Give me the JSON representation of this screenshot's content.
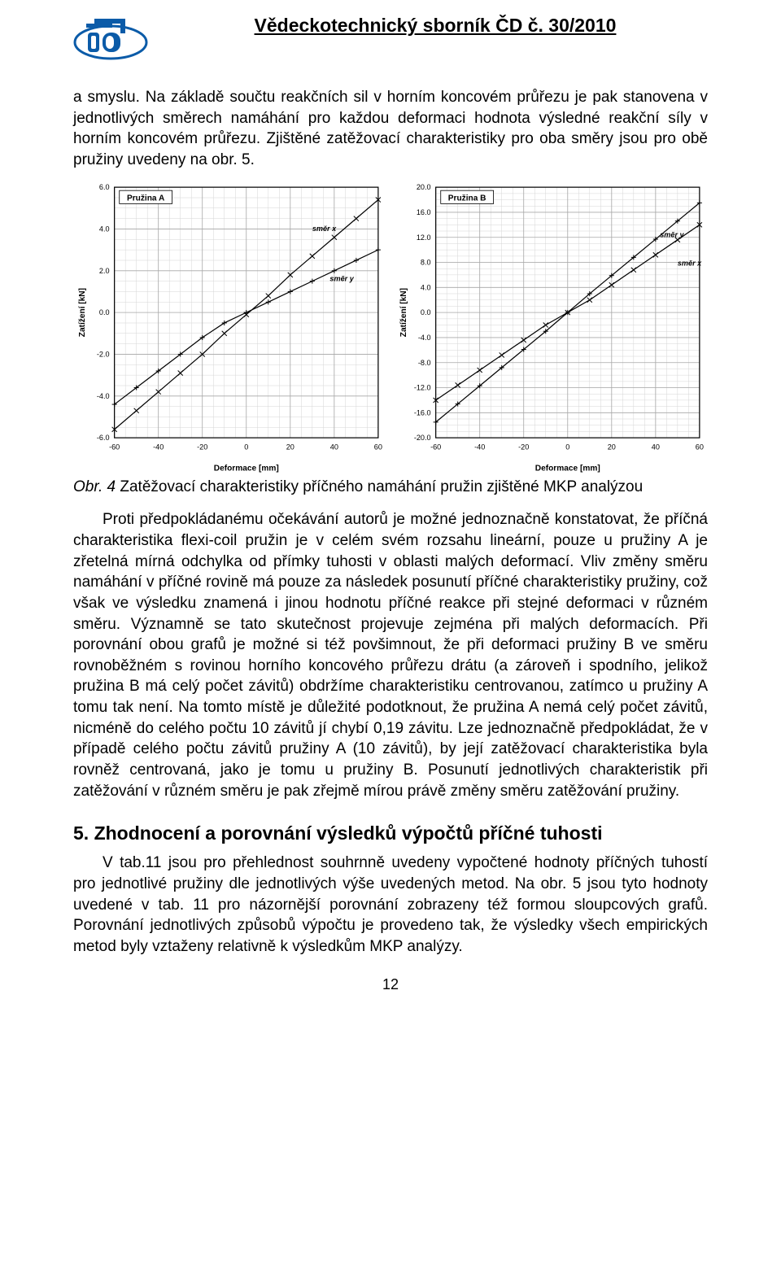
{
  "header": {
    "title": "Vědeckotechnický sborník ČD č. 30/2010",
    "logo_colors": {
      "blue": "#0b5ba8",
      "white": "#ffffff"
    }
  },
  "paragraphs": {
    "p1": "a smyslu. Na základě součtu reakčních sil v horním koncovém průřezu je pak stanovena v jednotlivých směrech namáhání pro každou deformaci hodnota výsledné reakční síly v horním koncovém průřezu. Zjištěné zatěžovací charakteristiky pro oba směry jsou pro obě pružiny uvedeny na obr. 5.",
    "p2": "Proti předpokládanému očekávání autorů je možné jednoznačně konstatovat, že příčná charakteristika flexi-coil pružin je v celém svém rozsahu lineární, pouze u pružiny A je zřetelná mírná odchylka od přímky tuhosti v oblasti malých deformací. Vliv změny směru namáhání v příčné rovině má pouze za následek posunutí příčné charakteristiky pružiny, což však ve výsledku znamená i jinou hodnotu příčné reakce při stejné deformaci v různém směru. Významně se tato skutečnost projevuje zejména při malých deformacích. Při porovnání obou grafů je možné si též povšimnout, že při deformaci pružiny B ve směru rovnoběžném s rovinou horního koncového průřezu drátu (a zároveň i spodního, jelikož pružina B má celý počet závitů) obdržíme charakteristiku centrovanou, zatímco u pružiny A tomu tak není. Na tomto místě je důležité podotknout, že pružina A nemá celý počet závitů, nicméně do celého počtu 10 závitů jí chybí 0,19 závitu. Lze jednoznačně předpokládat, že v případě celého počtu závitů pružiny A (10 závitů), by její zatěžovací charakteristika byla rovněž centrovaná, jako je tomu u pružiny B. Posunutí jednotlivých charakteristik při zatěžování v různém směru je pak zřejmě mírou právě změny směru zatěžování pružiny.",
    "p3": "V tab.11 jsou pro přehlednost souhrnně uvedeny vypočtené hodnoty příčných tuhostí pro jednotlivé pružiny dle jednotlivých výše uvedených metod. Na obr. 5 jsou tyto hodnoty uvedené v tab. 11 pro názornější porovnání zobrazeny též formou sloupcových grafů. Porovnání jednotlivých způsobů výpočtu je provedeno tak, že výsledky všech empirických metod byly vztaženy relativně k výsledkům MKP analýzy."
  },
  "figure": {
    "label": "Obr. 4",
    "caption": "Zatěžovací charakteristiky příčného namáhání pružin zjištěné MKP analýzou"
  },
  "section": {
    "heading": "5. Zhodnocení a porovnání výsledků výpočtů příčné tuhosti"
  },
  "page_number": "12",
  "chart_common": {
    "axis_color": "#000000",
    "major_grid_color": "#a8a8a8",
    "minor_grid_color": "#d6d6d6",
    "line_color": "#000000",
    "marker_color": "#000000",
    "legend_fill": "#ffffff",
    "legend_stroke": "#000000",
    "font_family": "Arial",
    "title_fontsize": 10,
    "tick_fontsize": 9,
    "label_fontsize": 10,
    "axis_title_y": "Zatížení [kN]",
    "axis_title_x": "Deformace [mm]",
    "line_width": 1.2,
    "marker_size": 3,
    "marker_style_x": "x",
    "marker_style_y": "plus"
  },
  "chart_a": {
    "type": "line",
    "title": "Pružina A",
    "xlim": [
      -60,
      60
    ],
    "xtick_step": 20,
    "x_minor": 4,
    "ylim": [
      -6,
      6
    ],
    "ytick_step": 2,
    "y_minor": 4,
    "series": [
      {
        "name": "směr x",
        "label_xy": [
          30,
          3.9
        ],
        "marker": "x",
        "pts": [
          [
            -60,
            -5.6
          ],
          [
            -50,
            -4.7
          ],
          [
            -40,
            -3.8
          ],
          [
            -30,
            -2.9
          ],
          [
            -20,
            -2.0
          ],
          [
            -10,
            -1.0
          ],
          [
            0,
            -0.1
          ],
          [
            10,
            0.8
          ],
          [
            20,
            1.8
          ],
          [
            30,
            2.7
          ],
          [
            40,
            3.6
          ],
          [
            50,
            4.5
          ],
          [
            60,
            5.4
          ]
        ]
      },
      {
        "name": "směr y",
        "label_xy": [
          38,
          1.5
        ],
        "marker": "plus",
        "pts": [
          [
            -60,
            -4.4
          ],
          [
            -50,
            -3.6
          ],
          [
            -40,
            -2.8
          ],
          [
            -30,
            -2.0
          ],
          [
            -20,
            -1.2
          ],
          [
            -10,
            -0.5
          ],
          [
            0,
            0.0
          ],
          [
            10,
            0.5
          ],
          [
            20,
            1.0
          ],
          [
            30,
            1.5
          ],
          [
            40,
            2.0
          ],
          [
            50,
            2.5
          ],
          [
            60,
            3.0
          ]
        ]
      }
    ]
  },
  "chart_b": {
    "type": "line",
    "title": "Pružina B",
    "xlim": [
      -60,
      60
    ],
    "xtick_step": 20,
    "x_minor": 4,
    "ylim": [
      -20,
      20
    ],
    "ytick_step": 4,
    "y_minor": 4,
    "series": [
      {
        "name": "směr y",
        "label_xy": [
          42,
          12.0
        ],
        "marker": "plus",
        "pts": [
          [
            -60,
            -17.5
          ],
          [
            -50,
            -14.6
          ],
          [
            -40,
            -11.7
          ],
          [
            -30,
            -8.8
          ],
          [
            -20,
            -5.9
          ],
          [
            -10,
            -3.0
          ],
          [
            0,
            0.0
          ],
          [
            10,
            3.0
          ],
          [
            20,
            5.9
          ],
          [
            30,
            8.8
          ],
          [
            40,
            11.7
          ],
          [
            50,
            14.6
          ],
          [
            60,
            17.5
          ]
        ]
      },
      {
        "name": "směr x",
        "label_xy": [
          50,
          7.5
        ],
        "marker": "x",
        "pts": [
          [
            -60,
            -14.0
          ],
          [
            -50,
            -11.6
          ],
          [
            -40,
            -9.2
          ],
          [
            -30,
            -6.8
          ],
          [
            -20,
            -4.4
          ],
          [
            -10,
            -2.0
          ],
          [
            0,
            0.0
          ],
          [
            10,
            2.0
          ],
          [
            20,
            4.4
          ],
          [
            30,
            6.8
          ],
          [
            40,
            9.2
          ],
          [
            50,
            11.6
          ],
          [
            60,
            14.0
          ]
        ]
      }
    ]
  }
}
